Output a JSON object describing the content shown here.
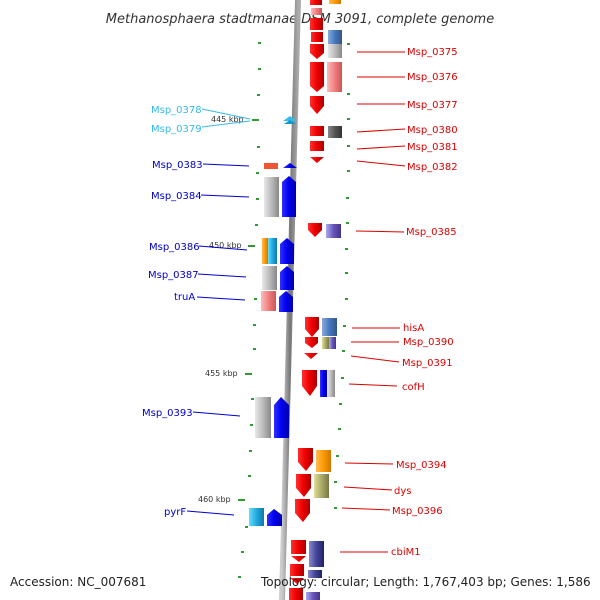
{
  "title": "Methanosphaera stadtmanae DSM 3091, complete genome",
  "footer": {
    "accession": "Accession: NC_007681",
    "topology": "Topology: circular; Length: 1,767,403 bp; Genes: 1,586"
  },
  "colors": {
    "strand_minus": "#0000ee",
    "strand_plus": "#ee0000",
    "highlight": "#33bbee",
    "backbone": "#888888",
    "tick": "#339933"
  },
  "kbp_marks": [
    "445 kbp",
    "450 kbp",
    "455 kbp",
    "460 kbp"
  ],
  "genes_left": [
    {
      "id": "Msp_0378",
      "label": "Msp_0378",
      "color": "#33bbee"
    },
    {
      "id": "Msp_0379",
      "label": "Msp_0379",
      "color": "#33bbee"
    },
    {
      "id": "Msp_0383",
      "label": "Msp_0383",
      "color": "#0000cc"
    },
    {
      "id": "Msp_0384",
      "label": "Msp_0384",
      "color": "#0000cc"
    },
    {
      "id": "Msp_0386",
      "label": "Msp_0386",
      "color": "#0000cc"
    },
    {
      "id": "Msp_0387",
      "label": "Msp_0387",
      "color": "#0000cc"
    },
    {
      "id": "truA",
      "label": "truA",
      "color": "#0000cc"
    },
    {
      "id": "Msp_0393",
      "label": "Msp_0393",
      "color": "#0000cc"
    },
    {
      "id": "pyrF",
      "label": "pyrF",
      "color": "#0000cc"
    }
  ],
  "genes_right": [
    {
      "id": "Msp_0375",
      "label": "Msp_0375",
      "color": "#dd0000"
    },
    {
      "id": "Msp_0376",
      "label": "Msp_0376",
      "color": "#dd0000"
    },
    {
      "id": "Msp_0377",
      "label": "Msp_0377",
      "color": "#dd0000"
    },
    {
      "id": "Msp_0380",
      "label": "Msp_0380",
      "color": "#dd0000"
    },
    {
      "id": "Msp_0381",
      "label": "Msp_0381",
      "color": "#dd0000"
    },
    {
      "id": "Msp_0382",
      "label": "Msp_0382",
      "color": "#dd0000"
    },
    {
      "id": "Msp_0385",
      "label": "Msp_0385",
      "color": "#dd0000"
    },
    {
      "id": "hisA",
      "label": "hisA",
      "color": "#dd0000"
    },
    {
      "id": "Msp_0390",
      "label": "Msp_0390",
      "color": "#dd0000"
    },
    {
      "id": "Msp_0391",
      "label": "Msp_0391",
      "color": "#dd0000"
    },
    {
      "id": "cofH",
      "label": "cofH",
      "color": "#dd0000"
    },
    {
      "id": "Msp_0394",
      "label": "Msp_0394",
      "color": "#dd0000"
    },
    {
      "id": "dys",
      "label": "dys",
      "color": "#dd0000"
    },
    {
      "id": "Msp_0396",
      "label": "Msp_0396",
      "color": "#dd0000"
    },
    {
      "id": "cbiM1",
      "label": "cbiM1",
      "color": "#dd0000"
    }
  ]
}
